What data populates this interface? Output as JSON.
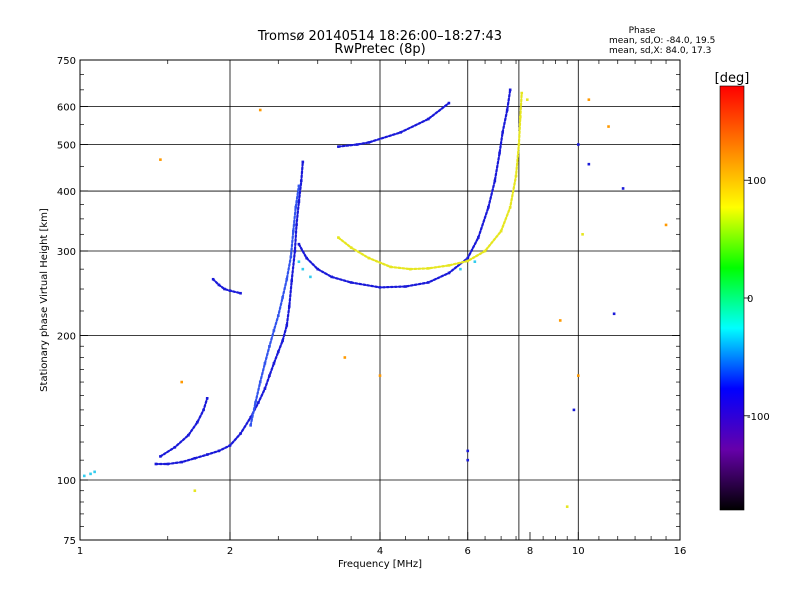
{
  "chart_data": {
    "type": "scatter",
    "title": "Tromsø 20140514  18:26:00–18:27:43",
    "subtitle": "RwPretec (8p)",
    "phase_header": "Phase",
    "phase_stats": [
      "mean, sd,O: -84.0, 19.5",
      "mean, sd,X:  84.0, 17.3"
    ],
    "xlabel": "Frequency [MHz]",
    "ylabel": "Stationary phase Virtual Height [km]",
    "x_scale": "log",
    "y_scale": "log",
    "xlim": [
      1,
      16
    ],
    "ylim": [
      75,
      750
    ],
    "x_ticks": [
      1,
      2,
      4,
      6,
      8,
      10,
      16
    ],
    "y_ticks": [
      75,
      100,
      200,
      300,
      400,
      500,
      600,
      750
    ],
    "x_grid": [
      2,
      4,
      6,
      7.6,
      10
    ],
    "y_grid": [
      100,
      200,
      300,
      400,
      500,
      600
    ],
    "grid": true,
    "colorbar": {
      "label": "[deg]",
      "range": [
        -180,
        180
      ],
      "ticks": [
        100,
        0,
        -100
      ],
      "colors": [
        "#ff0000",
        "#ff7f00",
        "#ffff00",
        "#00ff00",
        "#00ffff",
        "#0000ff",
        "#6600aa",
        "#000000"
      ]
    },
    "series": [
      {
        "color": "#1a1ad9",
        "points": [
          [
            1.42,
            108
          ],
          [
            1.5,
            108
          ],
          [
            1.6,
            109
          ],
          [
            1.7,
            111
          ],
          [
            1.8,
            113
          ],
          [
            1.9,
            115
          ],
          [
            2.0,
            118
          ],
          [
            2.1,
            125
          ],
          [
            2.2,
            135
          ],
          [
            2.28,
            145
          ],
          [
            2.35,
            155
          ],
          [
            2.4,
            165
          ],
          [
            2.45,
            175
          ],
          [
            2.5,
            185
          ],
          [
            2.55,
            195
          ],
          [
            2.6,
            210
          ],
          [
            2.63,
            230
          ],
          [
            2.66,
            260
          ],
          [
            2.7,
            300
          ],
          [
            2.72,
            340
          ],
          [
            2.75,
            380
          ],
          [
            2.78,
            420
          ],
          [
            2.8,
            460
          ]
        ]
      },
      {
        "color": "#1a1ad9",
        "points": [
          [
            1.45,
            112
          ],
          [
            1.55,
            117
          ],
          [
            1.65,
            124
          ],
          [
            1.72,
            132
          ],
          [
            1.77,
            140
          ],
          [
            1.8,
            148
          ]
        ]
      },
      {
        "color": "#1a1ad9",
        "points": [
          [
            1.85,
            262
          ],
          [
            1.9,
            255
          ],
          [
            1.95,
            250
          ],
          [
            2.0,
            248
          ],
          [
            2.1,
            245
          ]
        ]
      },
      {
        "color": "#3355ee",
        "points": [
          [
            2.2,
            130
          ],
          [
            2.25,
            145
          ],
          [
            2.3,
            160
          ],
          [
            2.35,
            175
          ],
          [
            2.4,
            190
          ],
          [
            2.45,
            205
          ],
          [
            2.5,
            220
          ],
          [
            2.55,
            240
          ],
          [
            2.6,
            262
          ],
          [
            2.65,
            292
          ],
          [
            2.68,
            330
          ],
          [
            2.71,
            370
          ],
          [
            2.75,
            410
          ]
        ]
      },
      {
        "color": "#1a1ad9",
        "points": [
          [
            2.75,
            310
          ],
          [
            2.85,
            290
          ],
          [
            3.0,
            275
          ],
          [
            3.2,
            265
          ],
          [
            3.5,
            258
          ],
          [
            4.0,
            252
          ],
          [
            4.5,
            253
          ],
          [
            5.0,
            258
          ],
          [
            5.5,
            270
          ],
          [
            6.0,
            290
          ],
          [
            6.3,
            320
          ],
          [
            6.6,
            370
          ],
          [
            6.8,
            420
          ],
          [
            6.95,
            480
          ],
          [
            7.05,
            530
          ],
          [
            7.2,
            590
          ],
          [
            7.3,
            650
          ]
        ]
      },
      {
        "color": "#e6e620",
        "points": [
          [
            3.3,
            320
          ],
          [
            3.5,
            305
          ],
          [
            3.8,
            290
          ],
          [
            4.2,
            278
          ],
          [
            4.6,
            275
          ],
          [
            5.0,
            276
          ],
          [
            5.5,
            280
          ],
          [
            6.0,
            286
          ],
          [
            6.5,
            300
          ],
          [
            7.0,
            330
          ],
          [
            7.3,
            370
          ],
          [
            7.5,
            430
          ],
          [
            7.6,
            500
          ],
          [
            7.65,
            570
          ],
          [
            7.7,
            640
          ]
        ]
      },
      {
        "color": "#1a1ad9",
        "points": [
          [
            3.3,
            495
          ],
          [
            3.6,
            500
          ],
          [
            3.8,
            505
          ],
          [
            4.4,
            530
          ],
          [
            5.0,
            565
          ],
          [
            5.5,
            610
          ]
        ]
      },
      {
        "color": "#33ccee",
        "points": [
          [
            1.02,
            102
          ],
          [
            1.05,
            103
          ],
          [
            1.07,
            104
          ],
          [
            2.75,
            285
          ],
          [
            2.8,
            275
          ],
          [
            2.9,
            265
          ],
          [
            5.8,
            275
          ],
          [
            6.2,
            285
          ]
        ]
      },
      {
        "color": "#ff9900",
        "points": [
          [
            1.45,
            465
          ],
          [
            1.6,
            160
          ],
          [
            2.3,
            590
          ],
          [
            3.4,
            180
          ],
          [
            4.0,
            165
          ],
          [
            9.2,
            215
          ],
          [
            10.0,
            165
          ],
          [
            10.5,
            620
          ],
          [
            11.5,
            545
          ],
          [
            15.0,
            340
          ]
        ]
      },
      {
        "color": "#e6e620",
        "points": [
          [
            1.7,
            95
          ],
          [
            7.9,
            620
          ],
          [
            9.5,
            88
          ],
          [
            10.2,
            325
          ]
        ]
      },
      {
        "color": "#1a1ad9",
        "points": [
          [
            6.0,
            110
          ],
          [
            6.0,
            115
          ],
          [
            9.8,
            140
          ],
          [
            10.0,
            500
          ],
          [
            10.5,
            455
          ],
          [
            12.3,
            405
          ],
          [
            11.8,
            222
          ]
        ]
      }
    ]
  }
}
